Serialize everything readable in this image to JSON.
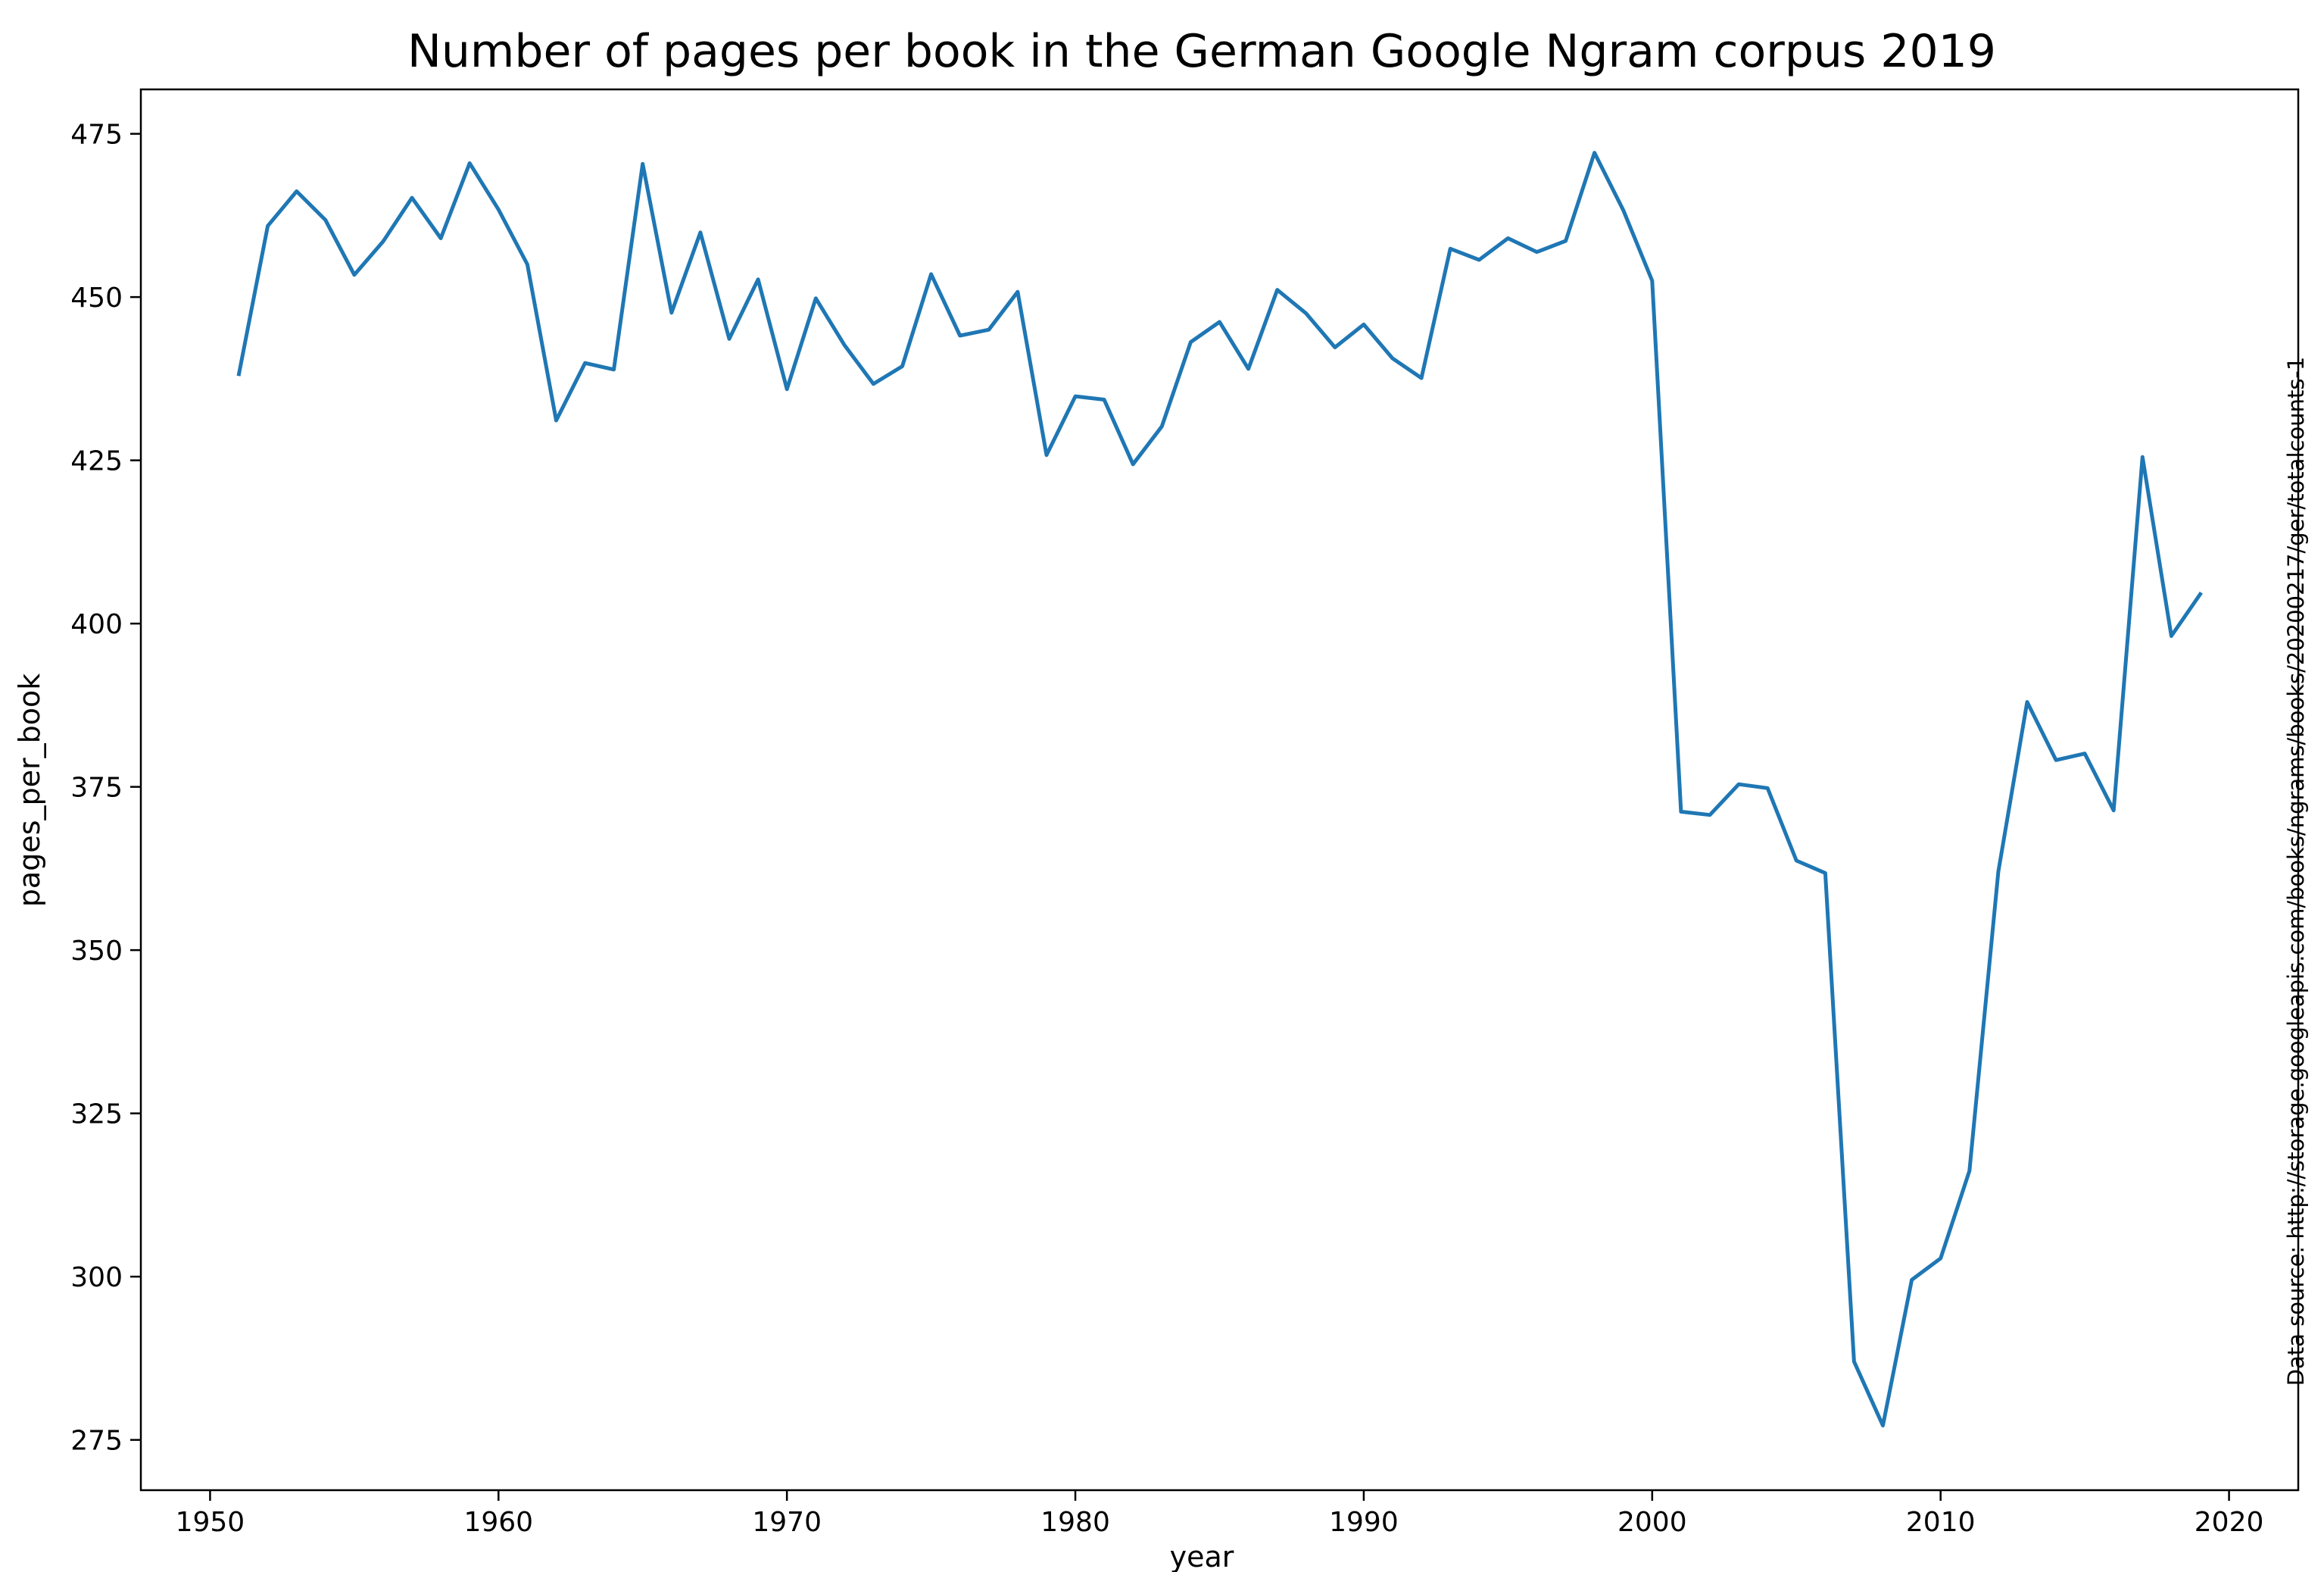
{
  "chart_data": {
    "type": "line",
    "title": "Number of pages per book in the German Google Ngram corpus 2019",
    "xlabel": "year",
    "ylabel": "pages_per_book",
    "source": "Data source: http://storage.googleapis.com/books/ngrams/books/20200217/ger/totalcounts-1",
    "xlim": [
      1947.6,
      2022.4
    ],
    "ylim": [
      267.3,
      481.8
    ],
    "x_ticks": [
      1950,
      1960,
      1970,
      1980,
      1990,
      2000,
      2010,
      2020
    ],
    "y_ticks": [
      275,
      300,
      325,
      350,
      375,
      400,
      425,
      450,
      475
    ],
    "grid": false,
    "legend": "none",
    "series": [
      {
        "color": "#1f77b4",
        "x": [
          1951,
          1952,
          1953,
          1954,
          1955,
          1956,
          1957,
          1958,
          1959,
          1960,
          1961,
          1962,
          1963,
          1964,
          1965,
          1966,
          1967,
          1968,
          1969,
          1970,
          1971,
          1972,
          1973,
          1974,
          1975,
          1976,
          1977,
          1978,
          1979,
          1980,
          1981,
          1982,
          1983,
          1984,
          1985,
          1986,
          1987,
          1988,
          1989,
          1990,
          1991,
          1992,
          1993,
          1994,
          1995,
          1996,
          1997,
          1998,
          1999,
          2000,
          2001,
          2002,
          2003,
          2004,
          2005,
          2006,
          2007,
          2008,
          2009,
          2010,
          2011,
          2012,
          2013,
          2014,
          2015,
          2016,
          2017,
          2018,
          2019
        ],
        "y": [
          438.2,
          460.9,
          466.2,
          461.8,
          453.4,
          458.5,
          465.2,
          459.0,
          470.5,
          463.4,
          455.0,
          431.1,
          439.9,
          438.9,
          470.4,
          447.6,
          459.9,
          443.6,
          452.7,
          435.9,
          449.8,
          442.6,
          436.7,
          439.4,
          453.5,
          444.1,
          445.0,
          450.8,
          425.8,
          434.8,
          434.3,
          424.4,
          430.2,
          443.1,
          446.2,
          439.0,
          451.1,
          447.5,
          442.3,
          445.8,
          440.6,
          437.6,
          457.4,
          455.7,
          459.0,
          456.9,
          458.6,
          472.1,
          463.3,
          452.5,
          371.2,
          370.7,
          375.4,
          374.8,
          363.7,
          361.8,
          287.0,
          277.2,
          299.5,
          302.8,
          316.2,
          362.0,
          388.0,
          379.1,
          380.1,
          371.4,
          425.5,
          398.1,
          404.5
        ]
      }
    ]
  }
}
